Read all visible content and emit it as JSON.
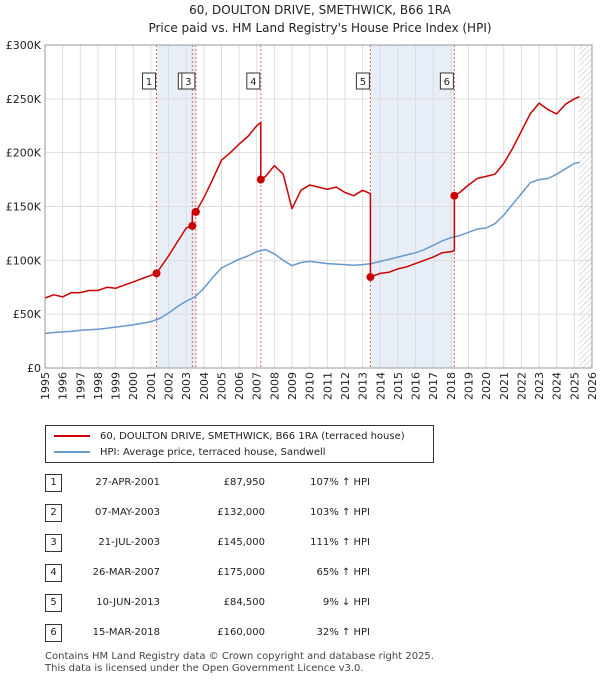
{
  "chart_data": {
    "type": "line",
    "title": "60, DOULTON DRIVE, SMETHWICK, B66 1RA",
    "subtitle": "Price paid vs. HM Land Registry's House Price Index (HPI)",
    "xlim": [
      1995,
      2026
    ],
    "ylim": [
      0,
      300000
    ],
    "yticks": [
      0,
      50000,
      100000,
      150000,
      200000,
      250000,
      300000
    ],
    "ytick_labels": [
      "£0",
      "£50K",
      "£100K",
      "£150K",
      "£200K",
      "£250K",
      "£300K"
    ],
    "xtick_labels": [
      "1995",
      "1996",
      "1997",
      "1998",
      "1999",
      "2000",
      "2001",
      "2002",
      "2003",
      "2004",
      "2005",
      "2006",
      "2007",
      "2008",
      "2009",
      "2010",
      "2011",
      "2012",
      "2013",
      "2014",
      "2015",
      "2016",
      "2017",
      "2018",
      "2019",
      "2020",
      "2021",
      "2022",
      "2023",
      "2024",
      "2025",
      "2026"
    ],
    "grid": true,
    "colors": {
      "property": "#cc0000",
      "hpi": "#6699cc",
      "shade": "#e8eef8",
      "marker_line": "#dd6666"
    },
    "series": [
      {
        "name": "60, DOULTON DRIVE, SMETHWICK, B66 1RA (terraced house)",
        "color": "#cc0000",
        "x": [
          1995.0,
          1995.5,
          1996.0,
          1996.5,
          1997.0,
          1997.5,
          1998.0,
          1998.5,
          1999.0,
          1999.5,
          2000.0,
          2000.5,
          2001.0,
          2001.32,
          2001.32,
          2002.0,
          2002.5,
          2003.0,
          2003.35,
          2003.35,
          2003.55,
          2003.55,
          2004.0,
          2004.5,
          2005.0,
          2005.5,
          2006.0,
          2006.5,
          2007.0,
          2007.23,
          2007.23,
          2007.5,
          2008.0,
          2008.5,
          2009.0,
          2009.5,
          2010.0,
          2010.5,
          2011.0,
          2011.5,
          2012.0,
          2012.5,
          2013.0,
          2013.44,
          2013.44,
          2014.0,
          2014.5,
          2015.0,
          2015.5,
          2016.0,
          2016.5,
          2017.0,
          2017.5,
          2018.0,
          2018.2,
          2018.2,
          2018.5,
          2019.0,
          2019.5,
          2020.0,
          2020.5,
          2021.0,
          2021.5,
          2022.0,
          2022.5,
          2023.0,
          2023.5,
          2024.0,
          2024.5,
          2025.0,
          2025.3
        ],
        "y": [
          65000,
          68000,
          66000,
          70000,
          70000,
          72000,
          72000,
          75000,
          74000,
          77000,
          80000,
          83000,
          86000,
          88000,
          88000,
          104000,
          117000,
          130000,
          132000,
          145000,
          145000,
          145000,
          158000,
          175000,
          193000,
          200000,
          208000,
          215000,
          225000,
          228000,
          175000,
          178000,
          188000,
          180000,
          148000,
          165000,
          170000,
          168000,
          166000,
          168000,
          163000,
          160000,
          165000,
          162000,
          84500,
          88000,
          89000,
          92000,
          94000,
          97000,
          100000,
          103000,
          107000,
          108000,
          109000,
          160000,
          163000,
          170000,
          176000,
          178000,
          180000,
          190000,
          204000,
          220000,
          236000,
          246000,
          240000,
          236000,
          245000,
          250000,
          252000
        ]
      },
      {
        "name": "HPI: Average price, terraced house, Sandwell",
        "color": "#6699cc",
        "x": [
          1995.0,
          1995.5,
          1996.0,
          1996.5,
          1997.0,
          1997.5,
          1998.0,
          1998.5,
          1999.0,
          1999.5,
          2000.0,
          2000.5,
          2001.0,
          2001.5,
          2002.0,
          2002.5,
          2003.0,
          2003.5,
          2004.0,
          2004.5,
          2005.0,
          2005.5,
          2006.0,
          2006.5,
          2007.0,
          2007.5,
          2008.0,
          2008.5,
          2009.0,
          2009.5,
          2010.0,
          2010.5,
          2011.0,
          2011.5,
          2012.0,
          2012.5,
          2013.0,
          2013.5,
          2014.0,
          2014.5,
          2015.0,
          2015.5,
          2016.0,
          2016.5,
          2017.0,
          2017.5,
          2018.0,
          2018.5,
          2019.0,
          2019.5,
          2020.0,
          2020.5,
          2021.0,
          2021.5,
          2022.0,
          2022.5,
          2023.0,
          2023.5,
          2024.0,
          2024.5,
          2025.0,
          2025.3
        ],
        "y": [
          32000,
          33000,
          33500,
          34000,
          35000,
          35500,
          36000,
          37000,
          38000,
          39000,
          40000,
          41500,
          43000,
          46000,
          51000,
          57000,
          62000,
          66000,
          74000,
          84000,
          93000,
          97000,
          101000,
          104000,
          108000,
          110000,
          106000,
          100000,
          95000,
          98000,
          99000,
          98000,
          97000,
          96500,
          96000,
          95500,
          96000,
          97000,
          99000,
          101000,
          103000,
          105000,
          107000,
          110000,
          114000,
          118000,
          121000,
          123000,
          126000,
          129000,
          130000,
          134000,
          142000,
          152000,
          162000,
          172000,
          175000,
          176000,
          180000,
          185000,
          190000,
          191000
        ]
      }
    ],
    "transactions": [
      {
        "num": "1",
        "year": 2001.32,
        "date": "27-APR-2001",
        "price_value": 87950,
        "price": "£87,950",
        "hpi": "107% ↑ HPI"
      },
      {
        "num": "2",
        "year": 2003.35,
        "date": "07-MAY-2003",
        "price_value": 132000,
        "price": "£132,000",
        "hpi": "103% ↑ HPI"
      },
      {
        "num": "3",
        "year": 2003.55,
        "date": "21-JUL-2003",
        "price_value": 145000,
        "price": "£145,000",
        "hpi": "111% ↑ HPI"
      },
      {
        "num": "4",
        "year": 2007.23,
        "date": "26-MAR-2007",
        "price_value": 175000,
        "price": "£175,000",
        "hpi": "65% ↑ HPI"
      },
      {
        "num": "5",
        "year": 2013.44,
        "date": "10-JUN-2013",
        "price_value": 84500,
        "price": "£84,500",
        "hpi": "9% ↓ HPI"
      },
      {
        "num": "6",
        "year": 2018.2,
        "date": "15-MAR-2018",
        "price_value": 160000,
        "price": "£160,000",
        "hpi": "32% ↑ HPI"
      }
    ],
    "shaded_spans": [
      [
        2001.32,
        2003.55
      ],
      [
        2013.44,
        2018.2
      ]
    ],
    "hatch_from": 2025.25
  },
  "legend": {
    "property_label": "60, DOULTON DRIVE, SMETHWICK, B66 1RA (terraced house)",
    "hpi_label": "HPI: Average price, terraced house, Sandwell"
  },
  "footer": {
    "line1": "Contains HM Land Registry data © Crown copyright and database right 2025.",
    "line2": "This data is licensed under the Open Government Licence v3.0."
  }
}
